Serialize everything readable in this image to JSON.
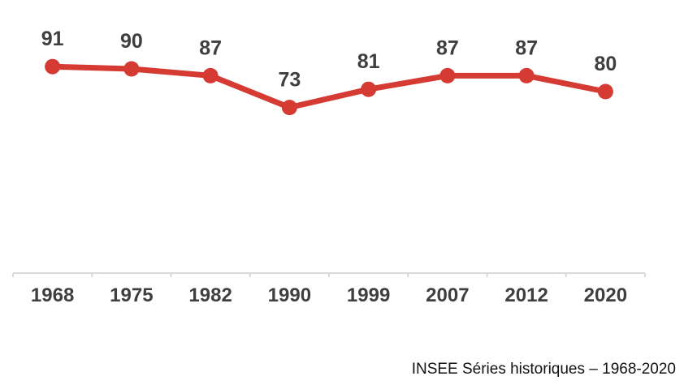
{
  "chart_data": {
    "type": "line",
    "title": "",
    "xlabel": "",
    "ylabel": "",
    "categories": [
      "1968",
      "1975",
      "1982",
      "1990",
      "1999",
      "2007",
      "2012",
      "2020"
    ],
    "values": [
      91,
      90,
      87,
      73,
      81,
      87,
      87,
      80
    ],
    "ylim": [
      0,
      100
    ],
    "grid": false,
    "legend": false,
    "data_labels": true,
    "marker": "circle"
  },
  "caption": {
    "text": "INSEE Séries historiques – 1968-2020"
  },
  "colors": {
    "line": "#d53a33",
    "marker": "#d53a33",
    "data_label": "#3f3f3f",
    "axis_label": "#3f3f3f",
    "axis": "#d9d9d9",
    "caption": "#111111"
  }
}
